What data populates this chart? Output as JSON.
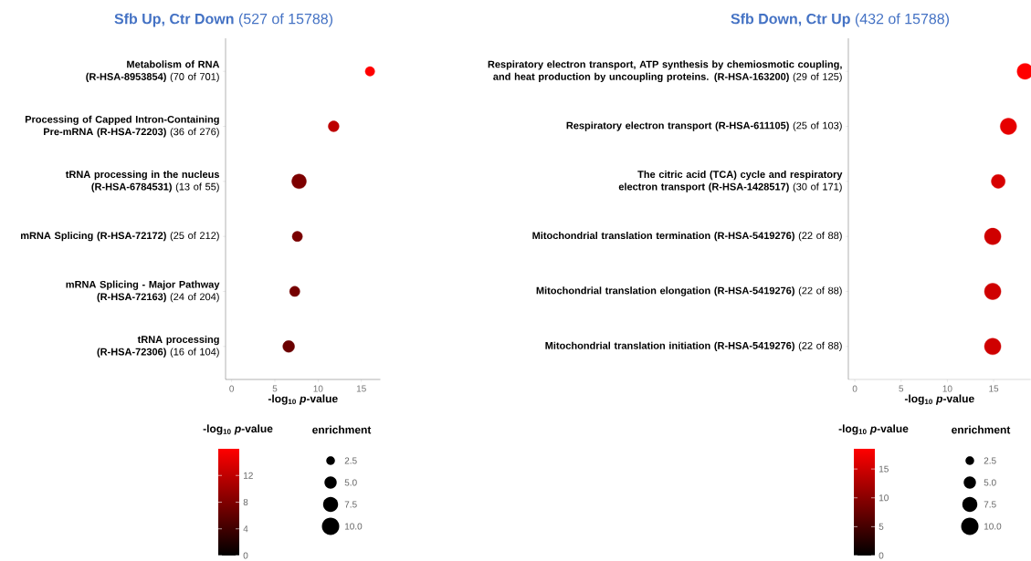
{
  "chart_data": [
    {
      "type": "bubble",
      "orientation": "horizontal",
      "title": "**Sfb Up, Ctr Down** (527 of 15788)",
      "xlabel": "-log$_{10}$ *p*-value",
      "clabel": "-log$_{10}$ *p*-value",
      "legend_title": "enrichment",
      "categories": [
        "**Metabolism of RNA (R-HSA-8953854)** (70 of 701)",
        "**Processing of Capped Intron-Containing Pre-mRNA (R-HSA-72203)** (36 of 276)",
        "**tRNA processing in the nucleus (R-HSA-6784531)** (13 of 55)",
        "**mRNA Splicing (R-HSA-72172)** (25 of 212)",
        "**mRNA Splicing - Major Pathway (R-HSA-72163)** (24 of 204)",
        "**tRNA processing (R-HSA-72306)** (16 of 104)"
      ],
      "values": [
        16.0,
        11.8,
        7.8,
        7.6,
        7.3,
        6.6
      ],
      "cvalues": [
        16.0,
        11.8,
        7.8,
        7.6,
        7.3,
        6.6
      ],
      "sizes": [
        3.0,
        3.9,
        7.1,
        3.5,
        3.5,
        4.6
      ],
      "size_legend": [
        2.5,
        {
          "value": 5,
          "label": "5.0"
        },
        7.5,
        {
          "value": 10,
          "label": "10.0"
        }
      ],
      "xlim": [
        -0.7,
        17.2
      ],
      "xticks": [
        0,
        5,
        10,
        15
      ],
      "clim": [
        0,
        16
      ],
      "cticks": [
        0,
        4,
        8,
        12
      ]
    },
    {
      "type": "bubble",
      "orientation": "horizontal",
      "title": "**Sfb Down, Ctr Up** (432 of 15788)",
      "xlabel": "-log$_{10}$ *p*-value",
      "clabel": "-log$_{10}$ *p*-value",
      "legend_title": "enrichment",
      "categories": [
        "**Respiratory electron transport, ATP synthesis by chemiosmotic coupling, and heat production by uncoupling proteins. (R-HSA-163200)** (29 of 125)",
        "**Respiratory electron transport (R-HSA-611105)** (25 of 103)",
        "**The citric acid (TCA) cycle and respiratory electron transport (R-HSA-1428517)** (30 of 171)",
        "**Mitochondrial translation termination (R-HSA-5419276)** (22 of 88)",
        "**Mitochondrial translation elongation (R-HSA-5419276)** (22 of 88)",
        "**Mitochondrial translation initiation (R-HSA-5419276)** (22 of 88)"
      ],
      "values": [
        18.4,
        16.6,
        15.5,
        14.9,
        14.9,
        14.9
      ],
      "cvalues": [
        18.4,
        16.6,
        15.5,
        14.9,
        14.9,
        14.9
      ],
      "sizes": [
        8.5,
        8.9,
        6.4,
        9.1,
        9.1,
        9.1
      ],
      "size_legend": [
        2.5,
        {
          "value": 5,
          "label": "5.0"
        },
        7.5,
        {
          "value": 10,
          "label": "10.0"
        }
      ],
      "xlim": [
        -0.7,
        19.0
      ],
      "xticks": [
        0,
        5,
        10,
        15
      ],
      "clim": [
        0,
        18.5
      ],
      "cticks": [
        0,
        5,
        10,
        15
      ]
    }
  ]
}
